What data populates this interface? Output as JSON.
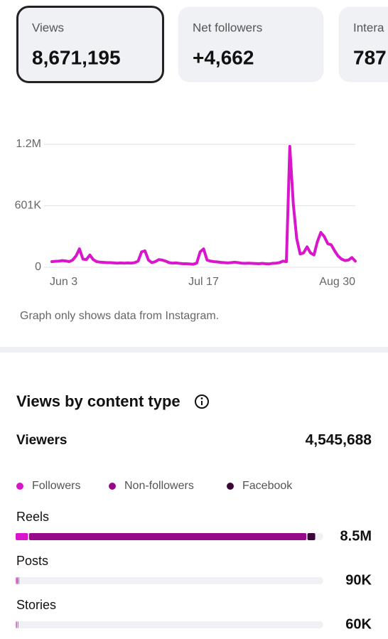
{
  "cards": [
    {
      "label": "Views",
      "value": "8,671,195",
      "selected": true
    },
    {
      "label": "Net followers",
      "value": "+4,662",
      "selected": false
    },
    {
      "label": "Intera",
      "value": "787",
      "selected": false
    }
  ],
  "chart_data": [
    {
      "type": "line",
      "color": "#d916cc",
      "categories": [
        "Jun 3",
        null,
        null,
        null,
        null,
        null,
        null,
        null,
        null,
        null,
        null,
        null,
        null,
        null,
        null,
        null,
        null,
        null,
        null,
        null,
        null,
        null,
        null,
        null,
        null,
        null,
        null,
        null,
        null,
        null,
        null,
        null,
        null,
        null,
        null,
        null,
        null,
        null,
        null,
        null,
        null,
        null,
        null,
        null,
        "Jul 17",
        null,
        null,
        null,
        null,
        null,
        null,
        null,
        null,
        null,
        null,
        null,
        null,
        null,
        null,
        null,
        null,
        null,
        null,
        null,
        null,
        null,
        null,
        null,
        null,
        null,
        null,
        null,
        null,
        null,
        null,
        null,
        null,
        null,
        null,
        null,
        null,
        null,
        null,
        null,
        null,
        null,
        null,
        null,
        "Aug 30"
      ],
      "values": [
        55000,
        58000,
        60000,
        65000,
        62000,
        55000,
        70000,
        110000,
        180000,
        80000,
        75000,
        120000,
        75000,
        55000,
        50000,
        48000,
        45000,
        45000,
        42000,
        40000,
        42000,
        40000,
        42000,
        40000,
        45000,
        60000,
        150000,
        160000,
        70000,
        45000,
        55000,
        75000,
        70000,
        60000,
        45000,
        40000,
        42000,
        38000,
        35000,
        35000,
        32000,
        30000,
        40000,
        150000,
        180000,
        70000,
        60000,
        55000,
        52000,
        48000,
        45000,
        42000,
        45000,
        50000,
        45000,
        40000,
        38000,
        40000,
        38000,
        36000,
        35000,
        38000,
        35000,
        33000,
        38000,
        40000,
        45000,
        60000,
        55000,
        1180000,
        620000,
        280000,
        130000,
        140000,
        200000,
        140000,
        120000,
        250000,
        340000,
        300000,
        230000,
        220000,
        160000,
        110000,
        80000,
        65000,
        70000,
        95000,
        60000
      ],
      "ylim": [
        0,
        1200000
      ],
      "yticks": [
        0,
        {
          "value": 601000,
          "label": "601K"
        },
        {
          "value": 1200000,
          "label": "1.2M"
        }
      ],
      "grid": true
    },
    {
      "type": "bar",
      "orientation": "horizontal",
      "stacked": true,
      "categories": [
        "Reels",
        "Posts",
        "Stories"
      ],
      "series": [
        {
          "name": "Followers",
          "color": "#d916cc",
          "values": [
            380000,
            30000,
            25000
          ]
        },
        {
          "name": "Non-followers",
          "color": "#960a89",
          "values": [
            7870000,
            55000,
            33000
          ]
        },
        {
          "name": "Facebook",
          "color": "#3b0638",
          "values": [
            250000,
            5000,
            2000
          ]
        }
      ],
      "totals": [
        8500000,
        90000,
        60000
      ],
      "total_labels": [
        "8.5M",
        "90K",
        "60K"
      ],
      "xlim": [
        0,
        8700000
      ]
    }
  ],
  "note": "Graph only shows data from Instagram.",
  "section": {
    "title": "Views by content type",
    "viewers_label": "Viewers",
    "viewers_value": "4,545,688"
  }
}
